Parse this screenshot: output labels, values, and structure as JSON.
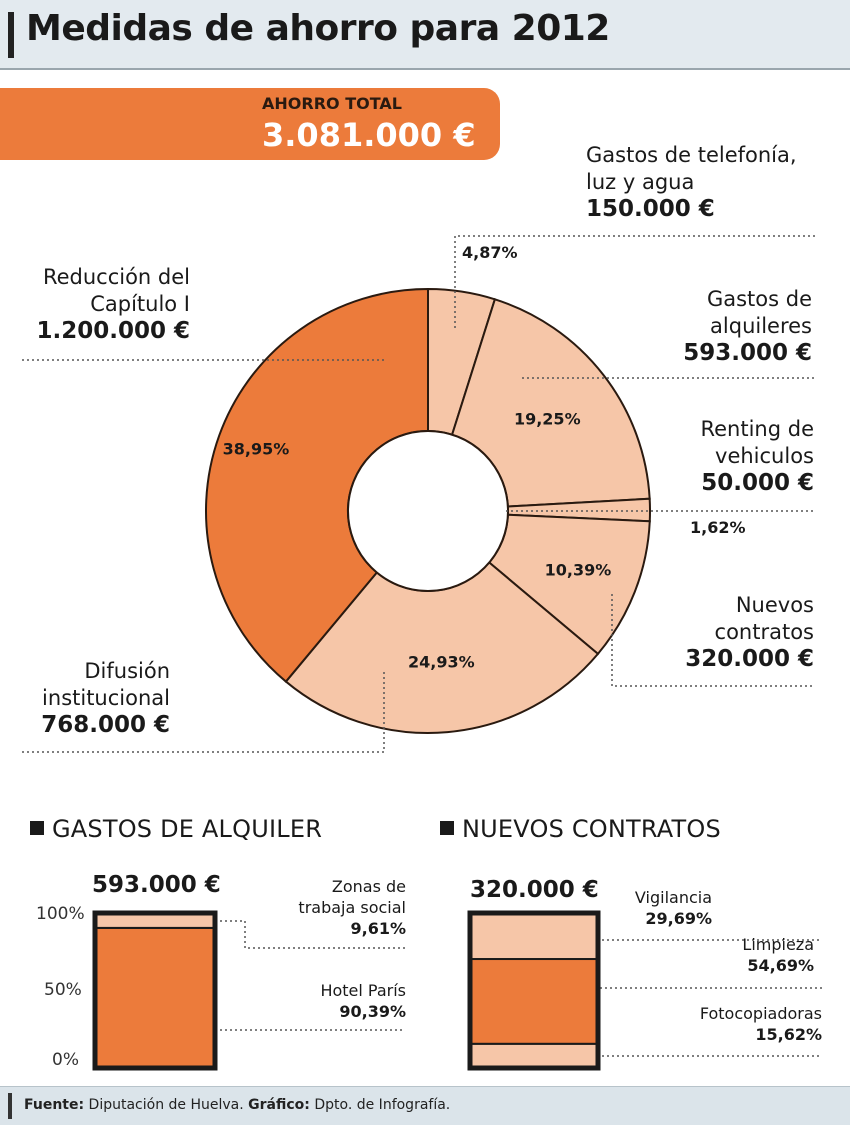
{
  "title": "Medidas de ahorro para 2012",
  "total": {
    "label": "AHORRO TOTAL",
    "value": "3.081.000 €"
  },
  "colors": {
    "dark_orange": "#ec7b3b",
    "light_orange": "#f6c6a8",
    "accent_bar": "#ec7b3b"
  },
  "chart_data": [
    {
      "type": "pie",
      "title": "Medidas de ahorro para 2012",
      "slices": [
        {
          "name_lines": [
            "Gastos de telefonía,",
            "luz y agua"
          ],
          "amount": "150.000 €",
          "pct": "4,87%",
          "value": 4.87,
          "color": "#f6c6a8"
        },
        {
          "name_lines": [
            "Gastos de",
            "alquileres"
          ],
          "amount": "593.000 €",
          "pct": "19,25%",
          "value": 19.25,
          "color": "#f6c6a8"
        },
        {
          "name_lines": [
            "Renting de",
            "vehiculos"
          ],
          "amount": "50.000 €",
          "pct": "1,62%",
          "value": 1.62,
          "color": "#f6c6a8"
        },
        {
          "name_lines": [
            "Nuevos",
            "contratos"
          ],
          "amount": "320.000 €",
          "pct": "10,39%",
          "value": 10.39,
          "color": "#f6c6a8"
        },
        {
          "name_lines": [
            "Difusión",
            "institucional"
          ],
          "amount": "768.000 €",
          "pct": "24,93%",
          "value": 24.93,
          "color": "#f6c6a8"
        },
        {
          "name_lines": [
            "Reducción del",
            "Capítulo I"
          ],
          "amount": "1.200.000 €",
          "pct": "38,95%",
          "value": 38.95,
          "color": "#ec7b3b"
        }
      ]
    },
    {
      "type": "bar",
      "title": "GASTOS DE ALQUILER",
      "total": "593.000 €",
      "yticks": [
        "100%",
        "50%",
        "0%"
      ],
      "series": [
        {
          "name": "Hotel París",
          "pct": "90,39%",
          "value": 90.39,
          "color": "#ec7b3b"
        },
        {
          "name_lines": [
            "Zonas de",
            "trabaja social"
          ],
          "pct": "9,61%",
          "value": 9.61,
          "color": "#f6c6a8"
        }
      ]
    },
    {
      "type": "bar",
      "title": "NUEVOS CONTRATOS",
      "total": "320.000 €",
      "series": [
        {
          "name": "Fotocopiadoras",
          "pct": "15,62%",
          "value": 15.62,
          "color": "#f6c6a8"
        },
        {
          "name": "Limpieza",
          "pct": "54,69%",
          "value": 54.69,
          "color": "#ec7b3b"
        },
        {
          "name": "Vigilancia",
          "pct": "29,69%",
          "value": 29.69,
          "color": "#f6c6a8"
        }
      ]
    }
  ],
  "footer": {
    "source_label": "Fuente:",
    "source": "Diputación de Huelva.",
    "graphic_label": "Gráfico:",
    "graphic": "Dpto. de Infografía."
  }
}
